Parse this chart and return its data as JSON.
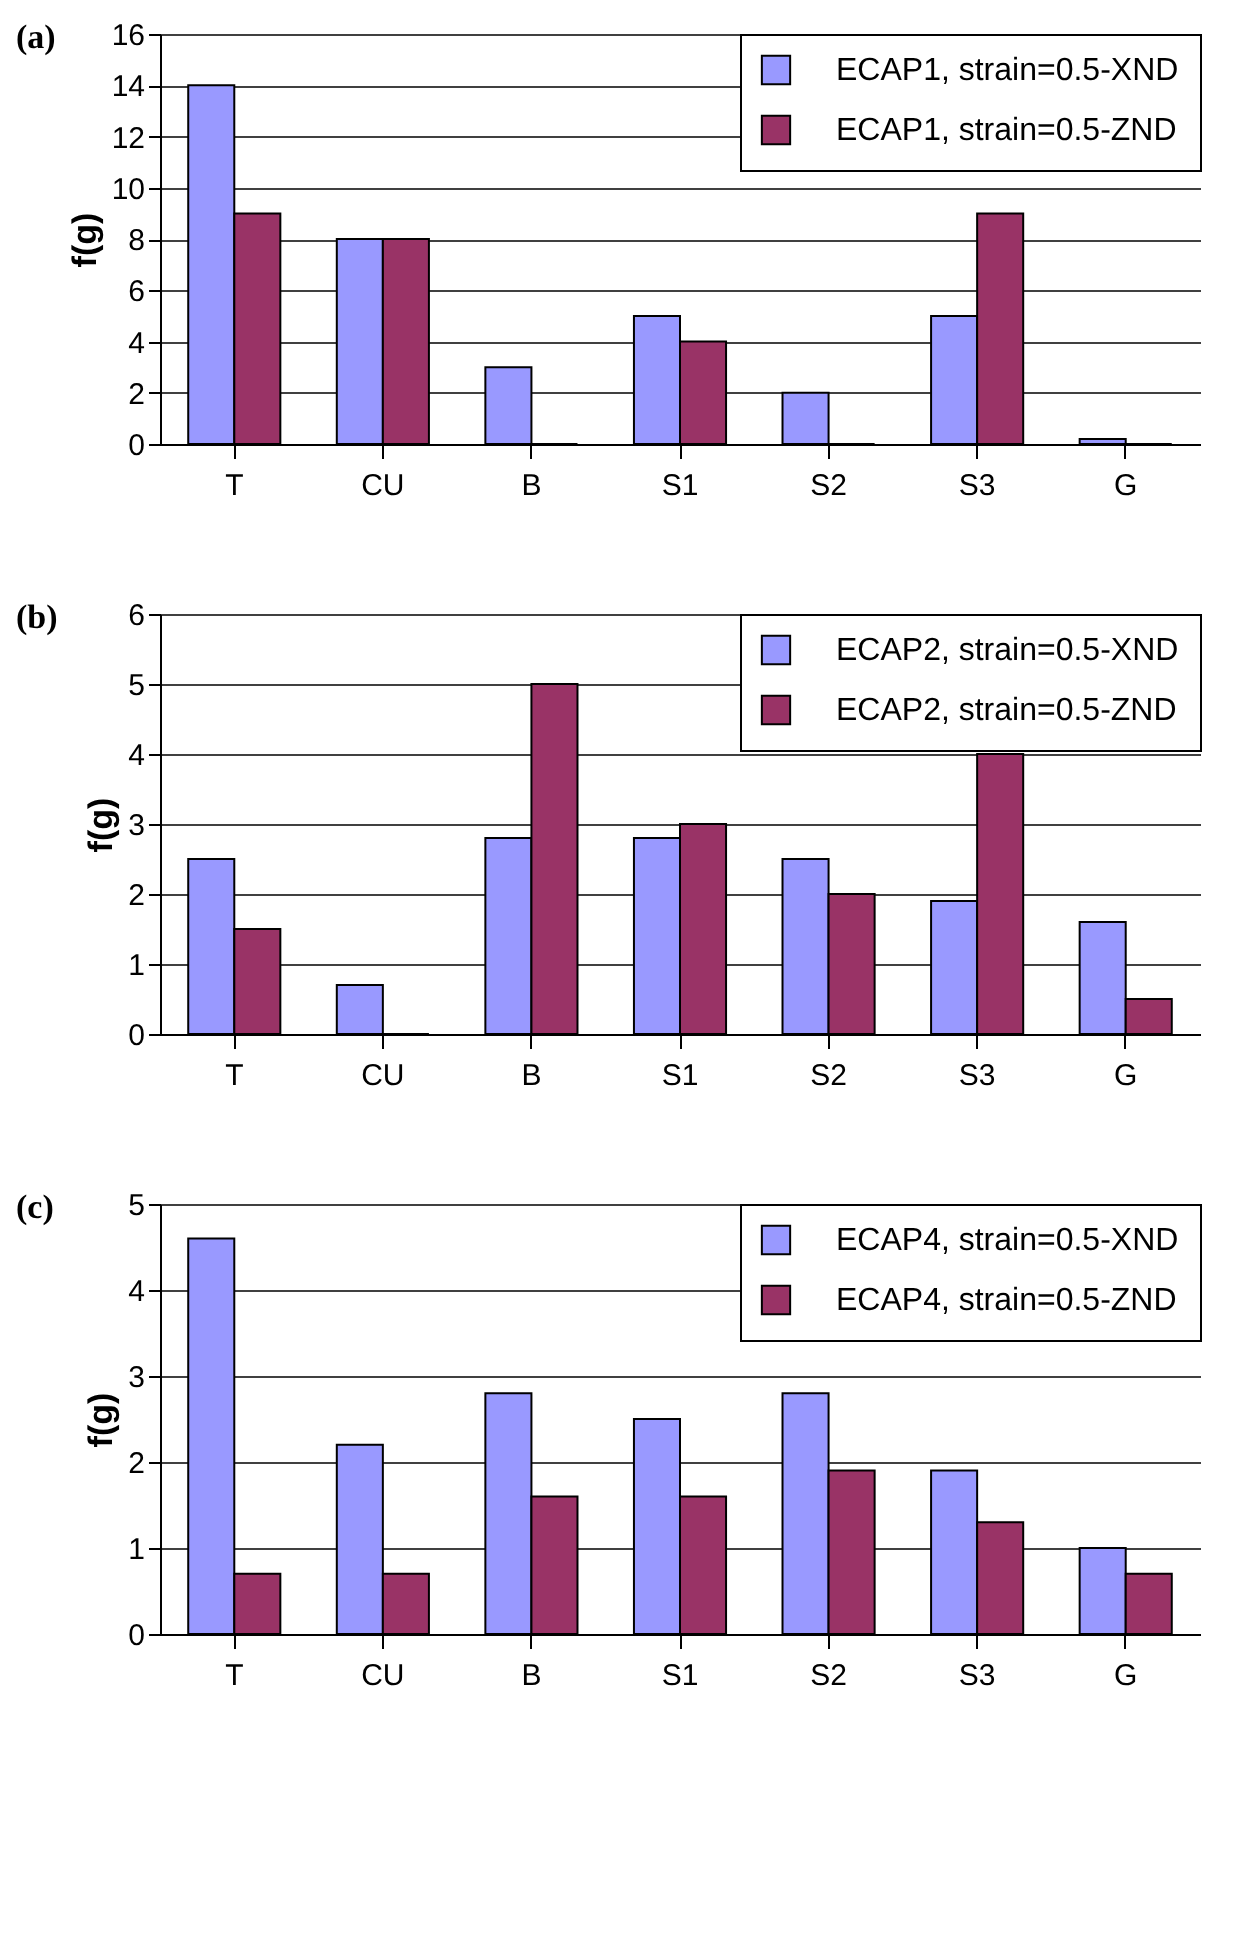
{
  "chart_data": [
    {
      "type": "bar",
      "title": "(a)",
      "ylabel": "f(g)",
      "categories": [
        "T",
        "CU",
        "B",
        "S1",
        "S2",
        "S3",
        "G"
      ],
      "series": [
        {
          "name": "ECAP1, strain=0.5-XND",
          "color": "#9999ff",
          "values": [
            14,
            8,
            3,
            5,
            2,
            5,
            0.2
          ]
        },
        {
          "name": "ECAP1, strain=0.5-ZND",
          "color": "#993366",
          "values": [
            9,
            8,
            0,
            4,
            0,
            9,
            0
          ]
        }
      ],
      "ylim": [
        0,
        16
      ],
      "yticks": [
        0,
        2,
        4,
        6,
        8,
        10,
        12,
        14,
        16
      ],
      "grid": "y",
      "legend": "top right"
    },
    {
      "type": "bar",
      "title": "(b)",
      "ylabel": "f(g)",
      "categories": [
        "T",
        "CU",
        "B",
        "S1",
        "S2",
        "S3",
        "G"
      ],
      "series": [
        {
          "name": "ECAP2, strain=0.5-XND",
          "color": "#9999ff",
          "values": [
            2.5,
            0.7,
            2.8,
            2.8,
            2.5,
            1.9,
            1.6
          ]
        },
        {
          "name": "ECAP2, strain=0.5-ZND",
          "color": "#993366",
          "values": [
            1.5,
            0,
            5,
            3,
            2,
            4,
            0.5
          ]
        }
      ],
      "ylim": [
        0,
        6
      ],
      "yticks": [
        0,
        1,
        2,
        3,
        4,
        5,
        6
      ],
      "grid": "y",
      "legend": "top right"
    },
    {
      "type": "bar",
      "title": "(c)",
      "ylabel": "f(g)",
      "categories": [
        "T",
        "CU",
        "B",
        "S1",
        "S2",
        "S3",
        "G"
      ],
      "series": [
        {
          "name": "ECAP4, strain=0.5-XND",
          "color": "#9999ff",
          "values": [
            4.6,
            2.2,
            2.8,
            2.5,
            2.8,
            1.9,
            1.0
          ]
        },
        {
          "name": "ECAP4, strain=0.5-ZND",
          "color": "#993366",
          "values": [
            0.7,
            0.7,
            1.6,
            1.6,
            1.9,
            1.3,
            0.7
          ]
        }
      ],
      "ylim": [
        0,
        5
      ],
      "yticks": [
        0,
        1,
        2,
        3,
        4,
        5
      ],
      "grid": "y",
      "legend": "top right"
    }
  ]
}
